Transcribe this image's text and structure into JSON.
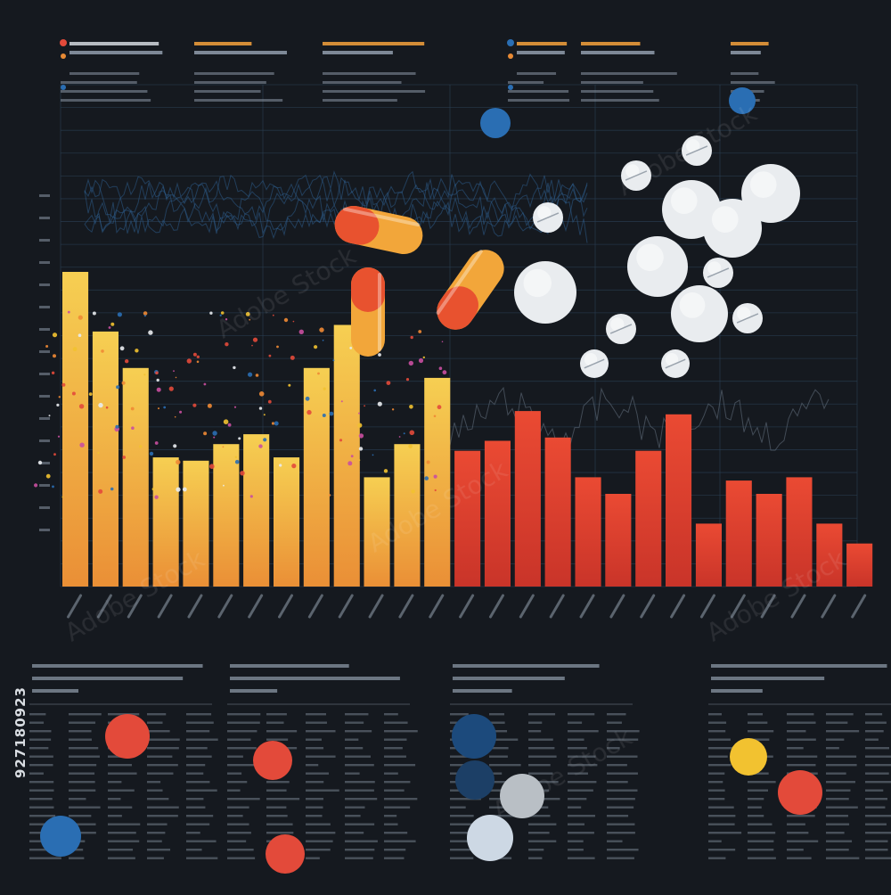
{
  "watermark": {
    "side_text": "927180923",
    "brand": "Adobe Stock"
  },
  "colors": {
    "background": "#15191f",
    "grid": "#2b4055",
    "wave": "#2d5c8c",
    "orange_series": [
      "#f3c64a",
      "#f0b440",
      "#ec9c38",
      "#e88a34"
    ],
    "red_series": [
      "#e85a3c",
      "#d8402e",
      "#c93528"
    ],
    "text_dim": "#8a96a4",
    "accent_blue": "#2a6eb3",
    "accent_red": "#e34a3a",
    "accent_yellow": "#f2c230",
    "pill_white": "#e9ecef"
  },
  "chart_data": {
    "type": "bar",
    "title": "",
    "xlabel": "",
    "ylabel": "",
    "ylim": [
      0,
      100
    ],
    "grid": true,
    "values": [
      95,
      77,
      66,
      39,
      38,
      43,
      46,
      39,
      66,
      79,
      33,
      43,
      63,
      41,
      44,
      53,
      45,
      33,
      28,
      41,
      52,
      19,
      32,
      28,
      33,
      19,
      13
    ],
    "palette": [
      "orange",
      "orange",
      "orange",
      "orange",
      "orange",
      "orange",
      "orange",
      "orange",
      "orange",
      "orange",
      "orange",
      "orange",
      "orange",
      "red",
      "red",
      "red",
      "red",
      "red",
      "red",
      "red",
      "red",
      "red",
      "red",
      "red",
      "red",
      "red",
      "red"
    ]
  }
}
